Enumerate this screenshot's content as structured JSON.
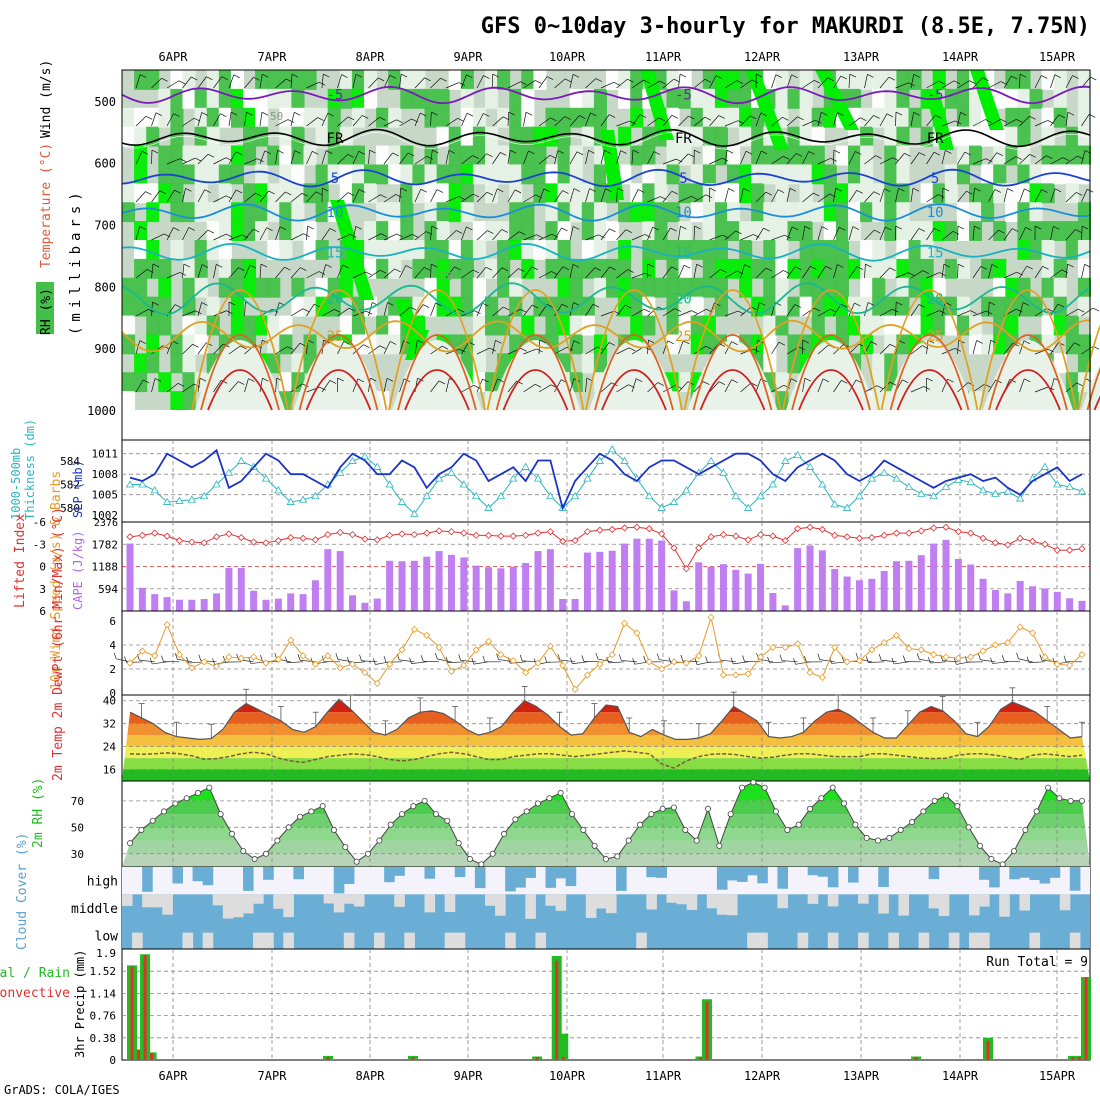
{
  "title": "GFS 0~10day 3-hourly for MAKURDI (8.5E, 7.75N)",
  "footer": "GrADS: COLA/IGES",
  "colors": {
    "panel_border": "#000000",
    "grid": "#888888",
    "rh_dark": "#44c04a",
    "rh_bright": "#00ee00",
    "rh_light": "#c8d8c8",
    "rh_pale": "#e8f2e8",
    "slp_line": "#1a33c8",
    "thickness_line": "#2ab6c0",
    "lifted_index": "#e03030",
    "cape_bar": "#c07ff0",
    "wind_speed": "#e89a2a",
    "cloud_fill": "#6aaed6",
    "cloud_gap": "#dddddd",
    "precip_total": "#22bb22",
    "precip_conv": "#e03030"
  },
  "chart_data": [
    {
      "type": "heatmap",
      "name": "upper_air",
      "ylabel_parts": [
        "RH (%)",
        "Temperature (°C)",
        "Wind (m/s)"
      ],
      "ylabel_units": "(millibars)",
      "yticks": [
        "500",
        "600",
        "700",
        "800",
        "900",
        "1000"
      ],
      "ylim": [
        1000,
        450
      ],
      "contours": [
        {
          "kind": "temperature",
          "label": "-5",
          "level": 490,
          "color": "#7a1ab8"
        },
        {
          "kind": "freezing",
          "label": "FR",
          "level": 560,
          "color": "#000000"
        },
        {
          "kind": "temperature",
          "label": "5",
          "level": 625,
          "color": "#1a44d0"
        },
        {
          "kind": "temperature",
          "label": "10",
          "level": 680,
          "color": "#1a8fd8"
        },
        {
          "kind": "temperature",
          "label": "15",
          "level": 745,
          "color": "#18b2c0"
        },
        {
          "kind": "temperature",
          "label": "20",
          "level": 820,
          "color": "#18b890"
        },
        {
          "kind": "temperature",
          "label": "25",
          "level": 880,
          "color": "#e0a020"
        }
      ],
      "rh_labels": [
        "50",
        "60"
      ]
    },
    {
      "type": "line",
      "name": "slp_thickness",
      "ylabel_left": [
        "1000-500mb",
        "Thickness (dm)"
      ],
      "ylabel_right": "SLP (mb)",
      "yticks_thickness": [
        "584",
        "582",
        "580"
      ],
      "yticks_slp": [
        "1011",
        "1008",
        "1005",
        "1002"
      ],
      "slp": [
        1007.5,
        1007,
        1008,
        1011,
        1010,
        1009,
        1010,
        1011.5,
        1006,
        1007,
        1009,
        1011,
        1010,
        1008,
        1008,
        1007,
        1006,
        1009,
        1011,
        1010,
        1008,
        1008,
        1010,
        1009,
        1006,
        1008,
        1009,
        1011,
        1010,
        1007,
        1008,
        1009,
        1007,
        1010,
        1010,
        1003,
        1007,
        1009,
        1011,
        1010,
        1008,
        1007,
        1009,
        1010,
        1010,
        1009,
        1008,
        1009,
        1010,
        1011,
        1011,
        1010,
        1008,
        1007,
        1009,
        1010,
        1011,
        1010,
        1008,
        1007,
        1008,
        1010,
        1009,
        1008,
        1007,
        1006,
        1007,
        1007.5,
        1008,
        1007,
        1007.5,
        1006,
        1005,
        1007,
        1008,
        1009,
        1007,
        1008
      ],
      "thickness": [
        582,
        582,
        581.5,
        580.5,
        580.6,
        580.7,
        581,
        582,
        583,
        584,
        583.5,
        582.5,
        581.5,
        580.5,
        580.7,
        581,
        582,
        583,
        584,
        584.4,
        583.5,
        582,
        580.5,
        579.5,
        581,
        582.5,
        583,
        582,
        581,
        580,
        581,
        582.5,
        583.5,
        582.5,
        581,
        580,
        581,
        582.5,
        584,
        585,
        584,
        582.5,
        581,
        580,
        580.5,
        581.5,
        583,
        584,
        583,
        581,
        580,
        581,
        582,
        584,
        584.5,
        583.5,
        582,
        580.3,
        580,
        581,
        582.5,
        583,
        582.5,
        581.8,
        581.2,
        581,
        581.8,
        582.4,
        582.2,
        581.5,
        581.2,
        581.4,
        580.8,
        582.5,
        583.5,
        582,
        581.8,
        581.4
      ]
    },
    {
      "type": "bar",
      "name": "cape_lifted_index",
      "ylabel_left": "Lifted Index",
      "ylabel_right": "CAPE (J/kg)",
      "yticks_li": [
        "-6",
        "-3",
        "0",
        "3",
        "6"
      ],
      "yticks_cape": [
        "2376",
        "1782",
        "1188",
        "594",
        "0"
      ],
      "cape": [
        1800,
        620,
        450,
        370,
        300,
        300,
        320,
        470,
        1150,
        1150,
        540,
        300,
        330,
        470,
        450,
        820,
        1650,
        1600,
        420,
        220,
        330,
        1340,
        1330,
        1340,
        1450,
        1600,
        1500,
        1430,
        1210,
        1170,
        1140,
        1180,
        1280,
        1600,
        1650,
        320,
        320,
        1560,
        1580,
        1610,
        1800,
        1930,
        1930,
        1880,
        550,
        260,
        1300,
        1180,
        1250,
        1100,
        1000,
        1260,
        480,
        150,
        1680,
        1750,
        1620,
        1120,
        920,
        820,
        860,
        1070,
        1330,
        1340,
        1490,
        1800,
        1900,
        1390,
        1240,
        860,
        560,
        470,
        800,
        660,
        600,
        510,
        340,
        270
      ],
      "lifted_index": [
        -4,
        -4.2,
        -4.5,
        -4.1,
        -3.5,
        -3.3,
        -3.2,
        -4,
        -4.4,
        -3.9,
        -3.3,
        -3.2,
        -3.5,
        -3.9,
        -3.8,
        -3.6,
        -4.3,
        -4.6,
        -4.3,
        -3.7,
        -3.6,
        -4.2,
        -4.4,
        -4.3,
        -4.5,
        -4.8,
        -4.7,
        -4.5,
        -4.2,
        -4.2,
        -4.1,
        -4.1,
        -4.2,
        -4.5,
        -4.7,
        -3.4,
        -3.5,
        -4.7,
        -4.9,
        -5.0,
        -5.2,
        -5.3,
        -5.1,
        -4.4,
        -2.5,
        0.3,
        -2.5,
        -4.0,
        -4.3,
        -4.1,
        -3.6,
        -4.3,
        -4.1,
        -3.5,
        -5.1,
        -5.3,
        -5.0,
        -4.2,
        -4.0,
        -3.8,
        -3.9,
        -4.2,
        -4.5,
        -4.5,
        -4.8,
        -5.2,
        -5.3,
        -4.7,
        -4.5,
        -3.8,
        -3.2,
        -2.9,
        -3.8,
        -3.4,
        -3.0,
        -2.2,
        -2.2,
        -2.4
      ]
    },
    {
      "type": "line",
      "name": "wind10m",
      "ylabel": "10m Wind Speed (m/s) & Barbs",
      "yticks": [
        "6",
        "4",
        "2",
        "0"
      ],
      "ylim": [
        0,
        6.5
      ],
      "speed": [
        2.5,
        3.5,
        3.1,
        5.7,
        3.2,
        2.1,
        2.6,
        2.2,
        3.0,
        2.9,
        3.0,
        2.5,
        2.8,
        4.4,
        3.1,
        2.4,
        3.1,
        2.1,
        2.4,
        1.7,
        0.8,
        2.4,
        3.6,
        5.3,
        4.8,
        3.8,
        1.8,
        2.3,
        3.6,
        4.3,
        3.2,
        2.7,
        1.7,
        2.5,
        3.9,
        2.3,
        0.3,
        1.5,
        2.4,
        3.2,
        5.8,
        5.0,
        2.6,
        2.0,
        2.6,
        2.5,
        3.1,
        6.3,
        1.5,
        1.5,
        1.6,
        3.0,
        3.8,
        3.8,
        4.1,
        1.7,
        1.3,
        3.8,
        2.6,
        2.7,
        3.6,
        4.2,
        4.8,
        3.7,
        3.6,
        3.2,
        3.0,
        2.9,
        3.0,
        3.5,
        4.0,
        4.2,
        5.5,
        5.0,
        3.0,
        2.4,
        2.3,
        3.2
      ]
    },
    {
      "type": "area",
      "name": "temperature",
      "ylabel": "2m Temp 2m DewPt (6hr Min/Max) (°C)",
      "yticks": [
        "40",
        "32",
        "24",
        "16"
      ],
      "ylim": [
        12,
        42
      ],
      "temp": [
        36,
        34,
        32,
        29,
        27.5,
        27,
        26.5,
        26.8,
        30,
        36,
        39,
        37,
        35,
        33,
        30,
        29,
        31,
        36,
        40.5,
        37,
        33,
        29,
        28,
        30,
        34,
        36,
        36.5,
        35.5,
        33,
        30,
        28,
        29,
        31,
        36,
        40,
        38,
        35,
        31,
        28,
        28.5,
        34,
        38.5,
        38,
        29,
        27.5,
        30,
        28,
        26.5,
        26.5,
        27,
        28.5,
        33,
        38,
        35.5,
        33,
        27.5,
        27,
        27.5,
        29,
        33,
        36,
        37,
        35,
        32,
        29,
        27,
        27,
        31.5,
        36,
        38,
        36.5,
        33,
        28.5,
        27.5,
        31,
        37,
        39.5,
        38,
        36,
        33,
        30,
        27,
        27.5
      ],
      "dewpoint": [
        21.5,
        21.3,
        21.5,
        21.8,
        21.5,
        20.8,
        19.6,
        19.8,
        20.5,
        21.5,
        22,
        21.5,
        20,
        19,
        18.5,
        19.5,
        20.5,
        21,
        21.5,
        21.2,
        20.5,
        19.5,
        19,
        19.5,
        20.5,
        21.5,
        22,
        21.5,
        20.5,
        19.5,
        19.5,
        20.5,
        21,
        21.5,
        21.5,
        21,
        20.5,
        21,
        21.5,
        22,
        22.5,
        22,
        21.5,
        18,
        16.5,
        19,
        20.5,
        21.3,
        21.5,
        21.2,
        20.5,
        20,
        20.3,
        21,
        21.5,
        21.5,
        21,
        20.5,
        20.5,
        20.5,
        21.5,
        21.5,
        21,
        20.5,
        20,
        19.8,
        20,
        21,
        21.5,
        21.5,
        21,
        20.3,
        19.5,
        21,
        21.5,
        21,
        20.5,
        21
      ]
    },
    {
      "type": "area",
      "name": "relative_humidity",
      "ylabel": "2m RH (%)",
      "yticks": [
        "70",
        "50",
        "30"
      ],
      "ylim": [
        20,
        85
      ],
      "rh": [
        38,
        48,
        55,
        60,
        65,
        70,
        74,
        77,
        80,
        60,
        45,
        32,
        26,
        30,
        40,
        50,
        58,
        62,
        65,
        48,
        35,
        26,
        30,
        40,
        52,
        60,
        65,
        68,
        60,
        55,
        38,
        28,
        22,
        30,
        45,
        55,
        62,
        68,
        72,
        76,
        60,
        48,
        36,
        26,
        28,
        38,
        52,
        60,
        62,
        65,
        48,
        38,
        64,
        35,
        60,
        80,
        84,
        80,
        62,
        48,
        52,
        64,
        72,
        80,
        70,
        55,
        48,
        40,
        40,
        42,
        48,
        52,
        62,
        72,
        75,
        70,
        55,
        40,
        28,
        22,
        30,
        42,
        52,
        60,
        65,
        68,
        62,
        42,
        28,
        24,
        32,
        48,
        60,
        80,
        72,
        70
      ],
      "rh_daily": [
        38,
        48,
        55,
        62,
        68,
        72,
        76,
        80,
        60,
        45,
        32,
        26,
        30,
        40,
        50,
        58,
        62,
        66,
        48,
        35,
        24,
        30,
        40,
        52,
        60,
        66,
        70,
        60,
        55,
        38,
        26,
        22,
        30,
        45,
        56,
        62,
        68,
        72,
        76,
        60,
        48,
        36,
        26,
        28,
        40,
        52,
        60,
        64,
        65,
        48,
        40,
        64,
        36,
        60,
        80,
        84,
        80,
        62,
        48,
        52,
        64,
        72,
        80,
        68,
        52,
        42,
        40,
        42,
        48,
        54,
        62,
        70,
        74,
        66,
        50,
        36,
        26,
        22,
        32,
        48,
        62,
        80,
        72,
        70,
        70
      ]
    },
    {
      "type": "bar",
      "name": "cloud_cover",
      "ylabel": "Cloud Cover (%)",
      "layers": [
        "high",
        "middle",
        "low"
      ]
    },
    {
      "type": "bar",
      "name": "precip",
      "ylabel": "3hr Precip (mm)",
      "legend_total": "Total / Rain",
      "legend_conv": "Convective",
      "run_total_label": "Run Total = 9",
      "yticks": [
        "1.9",
        "1.52",
        "1.14",
        "0.76",
        "0.38",
        "0"
      ],
      "ylim": [
        0,
        1.9
      ],
      "total": [
        1.62,
        0.18,
        1.81,
        0.13,
        0,
        0,
        0,
        0,
        0,
        0,
        0,
        0,
        0,
        0,
        0,
        0,
        0,
        0,
        0,
        0,
        0,
        0,
        0,
        0,
        0,
        0,
        0,
        0,
        0,
        0,
        0.07,
        0,
        0,
        0,
        0,
        0,
        0,
        0,
        0,
        0,
        0,
        0,
        0,
        0.07,
        0,
        0,
        0,
        0,
        0,
        0,
        0,
        0,
        0,
        0,
        0,
        0,
        0,
        0,
        0,
        0,
        0,
        0,
        0.06,
        0,
        0,
        1.78,
        0.45,
        0,
        0,
        0,
        0,
        0,
        0,
        0,
        0,
        0,
        0,
        0,
        0,
        0,
        0,
        0,
        0,
        0,
        0,
        0,
        0,
        0.06,
        1.04,
        0,
        0,
        0,
        0,
        0,
        0,
        0,
        0,
        0,
        0,
        0,
        0,
        0,
        0,
        0,
        0,
        0,
        0,
        0,
        0,
        0,
        0,
        0,
        0,
        0,
        0,
        0,
        0,
        0,
        0,
        0,
        0.06,
        0,
        0,
        0,
        0,
        0,
        0,
        0,
        0,
        0,
        0,
        0.38,
        0,
        0,
        0,
        0,
        0,
        0,
        0,
        0,
        0,
        0,
        0,
        0,
        0.07,
        0.07,
        1.42
      ],
      "convective": [
        1.6,
        0.18,
        1.8,
        0.12,
        0,
        0,
        0,
        0,
        0,
        0,
        0,
        0,
        0,
        0,
        0,
        0,
        0,
        0,
        0,
        0,
        0,
        0,
        0,
        0,
        0,
        0,
        0,
        0,
        0,
        0,
        0.05,
        0,
        0,
        0,
        0,
        0,
        0,
        0,
        0,
        0,
        0,
        0,
        0,
        0.05,
        0,
        0,
        0,
        0,
        0,
        0,
        0,
        0,
        0,
        0,
        0,
        0,
        0,
        0,
        0,
        0,
        0,
        0,
        0.05,
        0,
        0,
        1.7,
        0.05,
        0,
        0,
        0,
        0,
        0,
        0,
        0,
        0,
        0,
        0,
        0,
        0,
        0,
        0,
        0,
        0,
        0,
        0,
        0,
        0,
        0.05,
        1.0,
        0,
        0,
        0,
        0,
        0,
        0,
        0,
        0,
        0,
        0,
        0,
        0,
        0,
        0,
        0,
        0,
        0,
        0,
        0,
        0,
        0,
        0,
        0,
        0,
        0,
        0,
        0,
        0,
        0,
        0,
        0,
        0.05,
        0,
        0,
        0,
        0,
        0,
        0,
        0,
        0,
        0,
        0,
        0.33,
        0,
        0,
        0,
        0,
        0,
        0,
        0,
        0,
        0,
        0,
        0,
        0,
        0.05,
        0.05,
        1.42
      ]
    }
  ],
  "x_axis": {
    "date_labels": [
      "6APR",
      "7APR",
      "8APR",
      "9APR",
      "10APR",
      "11APR",
      "12APR",
      "13APR",
      "14APR",
      "15APR"
    ]
  }
}
